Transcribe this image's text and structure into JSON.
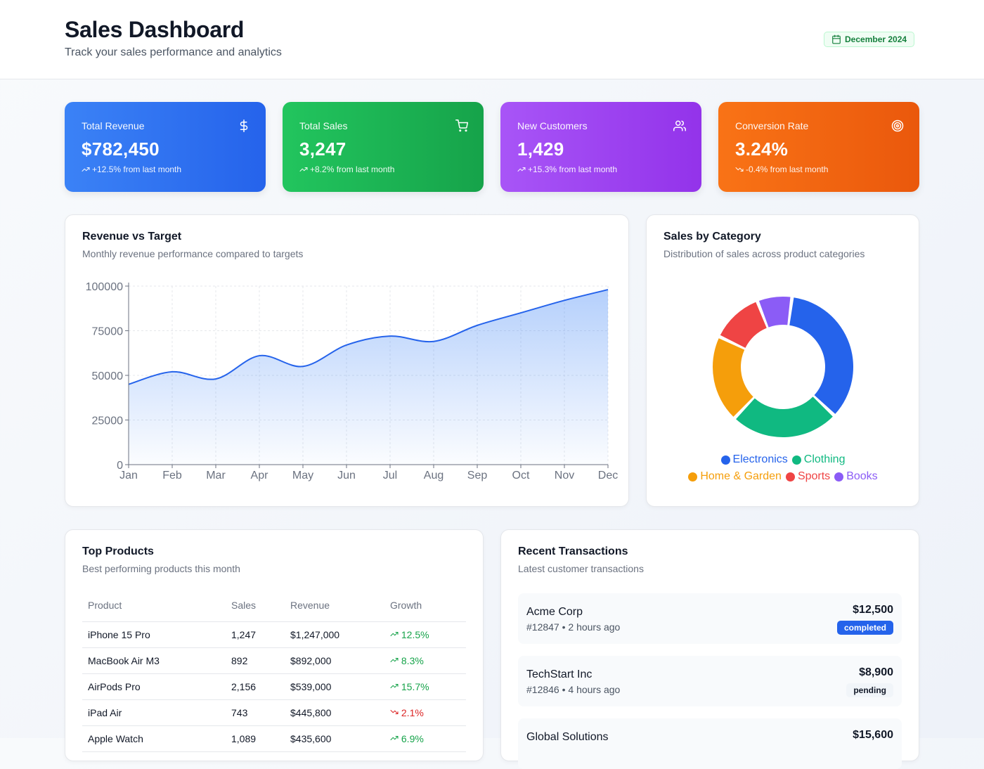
{
  "header": {
    "title": "Sales Dashboard",
    "subtitle": "Track your sales performance and analytics",
    "date_label": "December 2024"
  },
  "stats": [
    {
      "label": "Total Revenue",
      "value": "$782,450",
      "change": "+12.5% from last month",
      "trend": "up",
      "icon": "dollar-icon",
      "gradient": [
        "#3b82f6",
        "#2563eb"
      ]
    },
    {
      "label": "Total Sales",
      "value": "3,247",
      "change": "+8.2% from last month",
      "trend": "up",
      "icon": "cart-icon",
      "gradient": [
        "#22c55e",
        "#16a34a"
      ]
    },
    {
      "label": "New Customers",
      "value": "1,429",
      "change": "+15.3% from last month",
      "trend": "up",
      "icon": "users-icon",
      "gradient": [
        "#a855f7",
        "#9333ea"
      ]
    },
    {
      "label": "Conversion Rate",
      "value": "3.24%",
      "change": "-0.4% from last month",
      "trend": "down",
      "icon": "target-icon",
      "gradient": [
        "#f97316",
        "#ea580c"
      ]
    }
  ],
  "revenue_chart": {
    "title": "Revenue vs Target",
    "subtitle": "Monthly revenue performance compared to targets"
  },
  "category_chart": {
    "title": "Sales by Category",
    "subtitle": "Distribution of sales across product categories"
  },
  "chart_data": [
    {
      "type": "area",
      "categories": [
        "Jan",
        "Feb",
        "Mar",
        "Apr",
        "May",
        "Jun",
        "Jul",
        "Aug",
        "Sep",
        "Oct",
        "Nov",
        "Dec"
      ],
      "series": [
        {
          "values": [
            45000,
            52000,
            48000,
            61000,
            55000,
            67000,
            72000,
            69000,
            78000,
            85000,
            92000,
            98000
          ],
          "color": "#2563eb"
        }
      ],
      "ylim": [
        0,
        100000
      ],
      "yticks": [
        0,
        25000,
        50000,
        75000,
        100000
      ],
      "grid": true
    },
    {
      "type": "pie",
      "categories": [
        "Electronics",
        "Clothing",
        "Home & Garden",
        "Sports",
        "Books"
      ],
      "values": [
        35,
        25,
        20,
        12,
        8
      ],
      "colors": [
        "#2563eb",
        "#10b981",
        "#f59e0b",
        "#ef4444",
        "#8b5cf6"
      ],
      "legend": "bottom"
    }
  ],
  "top_products": {
    "title": "Top Products",
    "subtitle": "Best performing products this month",
    "columns": [
      "Product",
      "Sales",
      "Revenue",
      "Growth"
    ],
    "rows": [
      {
        "product": "iPhone 15 Pro",
        "sales": "1,247",
        "revenue": "$1,247,000",
        "growth": "12.5%",
        "trend": "up"
      },
      {
        "product": "MacBook Air M3",
        "sales": "892",
        "revenue": "$892,000",
        "growth": "8.3%",
        "trend": "up"
      },
      {
        "product": "AirPods Pro",
        "sales": "2,156",
        "revenue": "$539,000",
        "growth": "15.7%",
        "trend": "up"
      },
      {
        "product": "iPad Air",
        "sales": "743",
        "revenue": "$445,800",
        "growth": "2.1%",
        "trend": "down"
      },
      {
        "product": "Apple Watch",
        "sales": "1,089",
        "revenue": "$435,600",
        "growth": "6.9%",
        "trend": "up"
      }
    ]
  },
  "recent_transactions": {
    "title": "Recent Transactions",
    "subtitle": "Latest customer transactions",
    "items": [
      {
        "name": "Acme Corp",
        "meta": "#12847 • 2 hours ago",
        "amount": "$12,500",
        "status": "completed"
      },
      {
        "name": "TechStart Inc",
        "meta": "#12846 • 4 hours ago",
        "amount": "$8,900",
        "status": "pending"
      },
      {
        "name": "Global Solutions",
        "meta": "",
        "amount": "$15,600",
        "status": ""
      }
    ]
  }
}
